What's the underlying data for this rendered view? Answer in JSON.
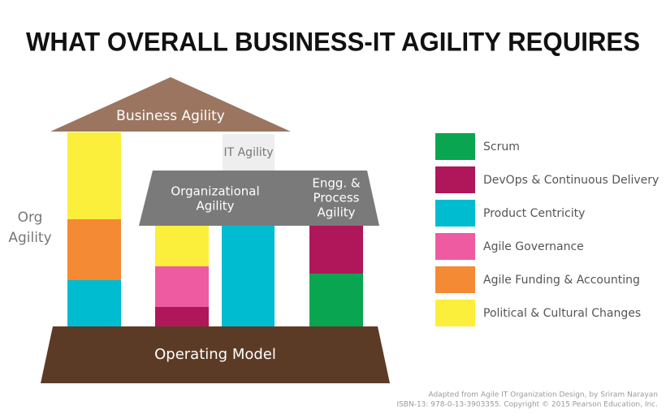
{
  "title": "WHAT OVERALL BUSINESS-IT AGILITY REQUIRES",
  "diagram": {
    "business_agility": "Business Agility",
    "it_agility": "IT Agility",
    "organizational_agility": [
      "Organizational",
      "Agility"
    ],
    "engg_process_agility": [
      "Engg. &",
      "Process",
      "Agility"
    ],
    "org_agility": [
      "Org",
      "Agility"
    ],
    "operating_model": "Operating Model"
  },
  "legend": [
    "Scrum",
    "DevOps & Continuous Delivery",
    "Product Centricity",
    "Agile Governance",
    "Agile Funding & Accounting",
    "Political & Cultural Changes"
  ],
  "footer": [
    "Adapted from Agile IT Organization Design, by Sriram Narayan",
    "ISBN-13: 978-0-13-3903355. Copyright © 2015 Pearson Education, Inc."
  ]
}
